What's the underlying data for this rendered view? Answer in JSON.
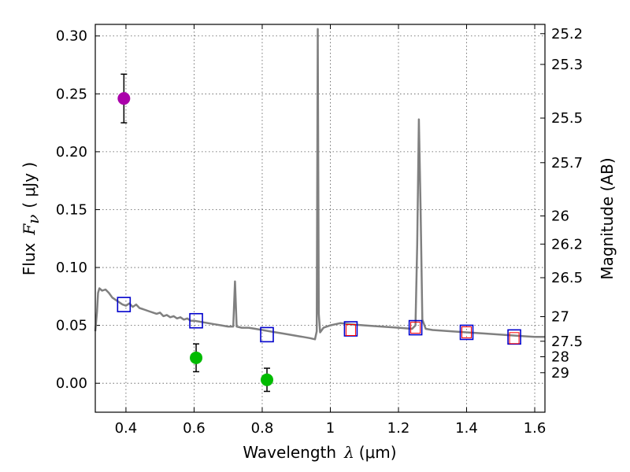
{
  "chart_data": {
    "type": "scatter",
    "xlabel_prefix": "Wavelength",
    "xlabel_symbol": "λ",
    "xlabel_unit": "(μm)",
    "ylabel_prefix": "Flux",
    "ylabel_symbol": "F",
    "ylabel_sub": "ν",
    "ylabel_unit": "( μJy )",
    "y2label": "Magnitude (AB)",
    "xlim": [
      0.31,
      1.63
    ],
    "ylim": [
      -0.025,
      0.31
    ],
    "xticks": [
      0.4,
      0.6,
      0.8,
      1.0,
      1.2,
      1.4,
      1.6
    ],
    "xtick_labels": [
      "0.4",
      "0.6",
      "0.8",
      "1",
      "1.2",
      "1.4",
      "1.6"
    ],
    "yticks": [
      0.0,
      0.05,
      0.1,
      0.15,
      0.2,
      0.25,
      0.3
    ],
    "ytick_labels": [
      "0.00",
      "0.05",
      "0.10",
      "0.15",
      "0.20",
      "0.25",
      "0.30"
    ],
    "mag_ticks": [
      25.2,
      25.3,
      25.5,
      25.7,
      26,
      26.2,
      26.5,
      27,
      27.5,
      28,
      29
    ],
    "mag_tick_labels": [
      "25.2",
      "25.3",
      "25.5",
      "25.7",
      "26",
      "26.2",
      "26.5",
      "27",
      "27.5",
      "28",
      "29"
    ],
    "grid": true,
    "colors": {
      "sed": "#808080",
      "magenta": "#aa00aa",
      "green": "#00bb00",
      "blue_box": "#0000cc",
      "red_box": "#ff0000",
      "errbar": "#000000"
    },
    "sed_model": [
      [
        0.31,
        0.045
      ],
      [
        0.315,
        0.062
      ],
      [
        0.318,
        0.078
      ],
      [
        0.322,
        0.082
      ],
      [
        0.33,
        0.08
      ],
      [
        0.34,
        0.081
      ],
      [
        0.35,
        0.078
      ],
      [
        0.36,
        0.074
      ],
      [
        0.37,
        0.072
      ],
      [
        0.38,
        0.07
      ],
      [
        0.39,
        0.068
      ],
      [
        0.4,
        0.067
      ],
      [
        0.41,
        0.069
      ],
      [
        0.42,
        0.066
      ],
      [
        0.43,
        0.068
      ],
      [
        0.44,
        0.065
      ],
      [
        0.45,
        0.064
      ],
      [
        0.46,
        0.063
      ],
      [
        0.47,
        0.062
      ],
      [
        0.48,
        0.061
      ],
      [
        0.49,
        0.06
      ],
      [
        0.5,
        0.061
      ],
      [
        0.51,
        0.058
      ],
      [
        0.52,
        0.059
      ],
      [
        0.53,
        0.057
      ],
      [
        0.54,
        0.058
      ],
      [
        0.55,
        0.056
      ],
      [
        0.56,
        0.057
      ],
      [
        0.57,
        0.055
      ],
      [
        0.58,
        0.056
      ],
      [
        0.59,
        0.054
      ],
      [
        0.6,
        0.054
      ],
      [
        0.62,
        0.053
      ],
      [
        0.64,
        0.052
      ],
      [
        0.66,
        0.051
      ],
      [
        0.68,
        0.05
      ],
      [
        0.7,
        0.049
      ],
      [
        0.715,
        0.049
      ],
      [
        0.72,
        0.088
      ],
      [
        0.725,
        0.049
      ],
      [
        0.74,
        0.048
      ],
      [
        0.76,
        0.048
      ],
      [
        0.78,
        0.047
      ],
      [
        0.8,
        0.046
      ],
      [
        0.82,
        0.045
      ],
      [
        0.84,
        0.044
      ],
      [
        0.86,
        0.043
      ],
      [
        0.88,
        0.042
      ],
      [
        0.9,
        0.041
      ],
      [
        0.92,
        0.04
      ],
      [
        0.94,
        0.039
      ],
      [
        0.955,
        0.038
      ],
      [
        0.96,
        0.045
      ],
      [
        0.963,
        0.306
      ],
      [
        0.966,
        0.06
      ],
      [
        0.97,
        0.044
      ],
      [
        0.98,
        0.048
      ],
      [
        1.0,
        0.05
      ],
      [
        1.03,
        0.052
      ],
      [
        1.06,
        0.051
      ],
      [
        1.1,
        0.05
      ],
      [
        1.15,
        0.049
      ],
      [
        1.2,
        0.048
      ],
      [
        1.24,
        0.047
      ],
      [
        1.25,
        0.05
      ],
      [
        1.255,
        0.12
      ],
      [
        1.26,
        0.228
      ],
      [
        1.265,
        0.15
      ],
      [
        1.27,
        0.055
      ],
      [
        1.28,
        0.047
      ],
      [
        1.3,
        0.046
      ],
      [
        1.35,
        0.045
      ],
      [
        1.4,
        0.044
      ],
      [
        1.45,
        0.043
      ],
      [
        1.5,
        0.042
      ],
      [
        1.55,
        0.041
      ],
      [
        1.6,
        0.04
      ],
      [
        1.63,
        0.04
      ]
    ],
    "measured": [
      {
        "name": "magenta-point",
        "x": 0.394,
        "y": 0.246,
        "err": 0.021,
        "color": "magenta"
      },
      {
        "name": "green-point-1",
        "x": 0.606,
        "y": 0.022,
        "err": 0.012,
        "color": "green"
      },
      {
        "name": "green-point-2",
        "x": 0.814,
        "y": 0.003,
        "err": 0.01,
        "color": "green"
      }
    ],
    "model_bands_blue": [
      {
        "x": 0.394,
        "y": 0.068
      },
      {
        "x": 0.606,
        "y": 0.054
      },
      {
        "x": 0.814,
        "y": 0.042
      },
      {
        "x": 1.06,
        "y": 0.047
      },
      {
        "x": 1.25,
        "y": 0.048
      },
      {
        "x": 1.4,
        "y": 0.044
      },
      {
        "x": 1.54,
        "y": 0.04
      }
    ],
    "model_bands_red": [
      {
        "x": 1.06,
        "y": 0.046
      },
      {
        "x": 1.25,
        "y": 0.048
      },
      {
        "x": 1.4,
        "y": 0.044
      },
      {
        "x": 1.54,
        "y": 0.039
      }
    ]
  }
}
